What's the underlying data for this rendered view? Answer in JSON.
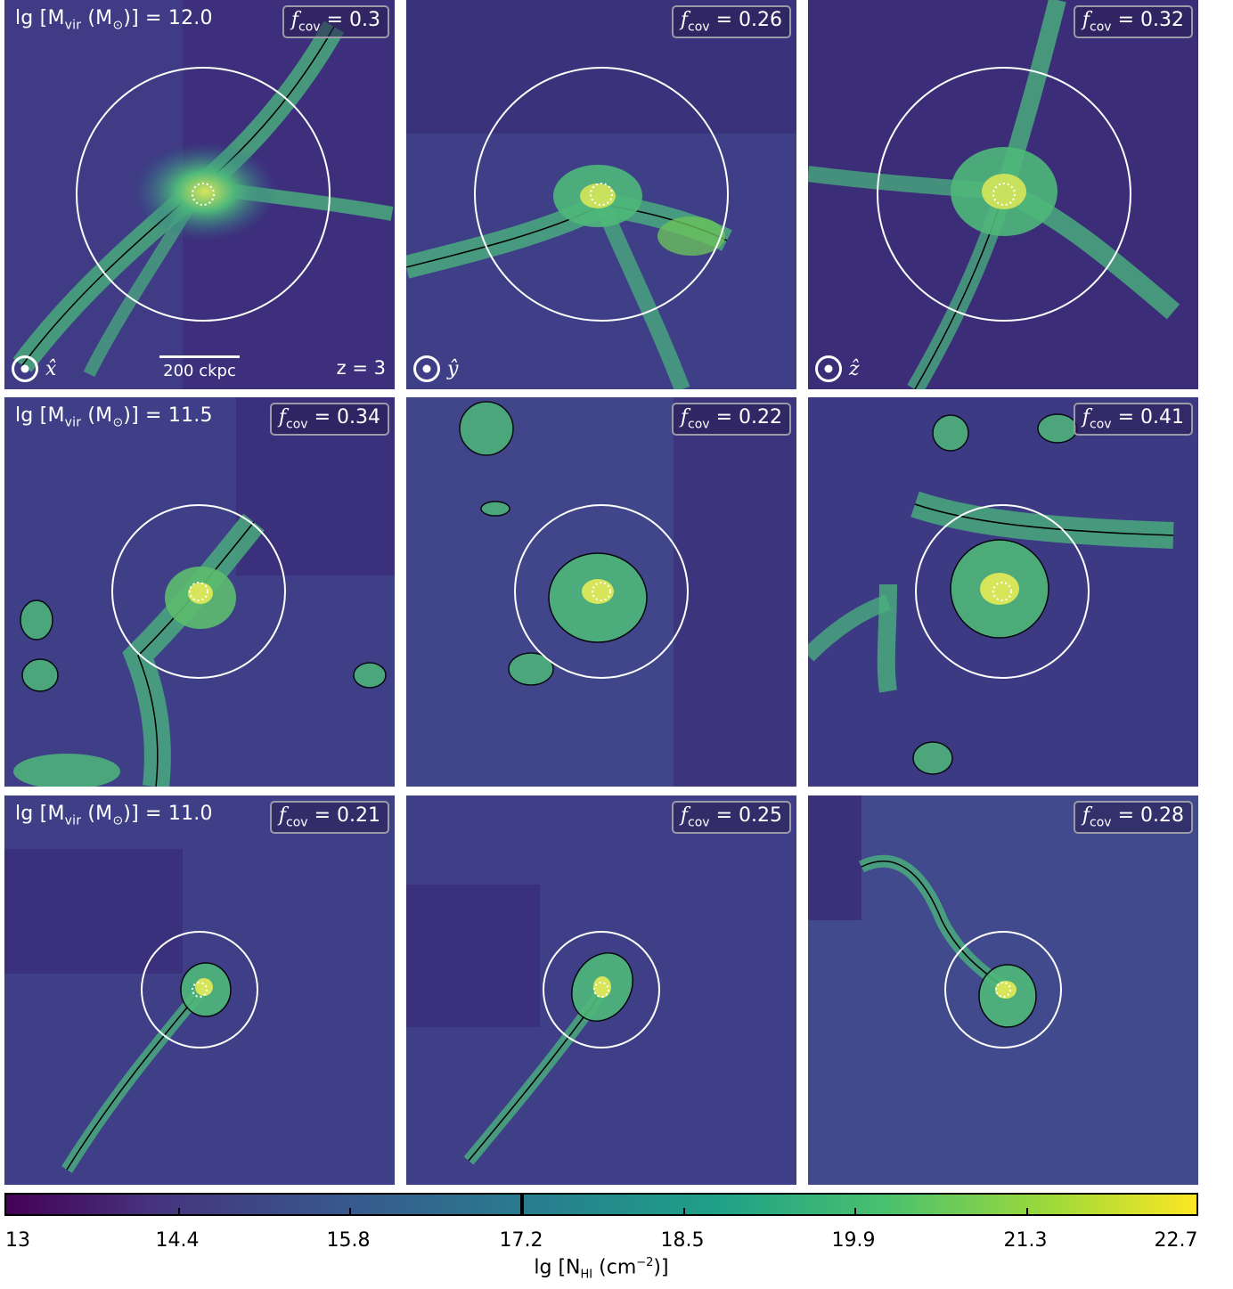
{
  "rows": [
    {
      "mass_label": "lg [M",
      "mass_label_sub": "vir",
      "mass_label_rest": " (M",
      "mass_label_tail": ")] = 12.0",
      "panels": [
        {
          "fcov": "0.3",
          "axis": "x̂"
        },
        {
          "fcov": "0.26",
          "axis": "ŷ"
        },
        {
          "fcov": "0.32",
          "axis": "ẑ"
        }
      ]
    },
    {
      "mass_label": "lg [M",
      "mass_label_sub": "vir",
      "mass_label_rest": " (M",
      "mass_label_tail": ")] = 11.5",
      "panels": [
        {
          "fcov": "0.34"
        },
        {
          "fcov": "0.22"
        },
        {
          "fcov": "0.41"
        }
      ]
    },
    {
      "mass_label": "lg [M",
      "mass_label_sub": "vir",
      "mass_label_rest": " (M",
      "mass_label_tail": ")] = 11.0",
      "panels": [
        {
          "fcov": "0.21"
        },
        {
          "fcov": "0.25"
        },
        {
          "fcov": "0.28"
        }
      ]
    }
  ],
  "fcov_symbol": "f",
  "fcov_sub": "cov",
  "fcov_eq": " = ",
  "sun_symbol": "⊙",
  "scalebar_label": "200 ckpc",
  "redshift_label": "z = 3",
  "colorbar": {
    "ticks": [
      "13",
      "14.4",
      "15.8",
      "17.2",
      "18.5",
      "19.9",
      "21.3",
      "22.7"
    ],
    "label_main": "lg [N",
    "label_sub": "HI",
    "label_mid": " (cm",
    "label_sup": "−2",
    "label_end": ")]",
    "colormap": [
      "#440154",
      "#46327e",
      "#365c8d",
      "#277f8e",
      "#1fa187",
      "#4ac16d",
      "#a0da39",
      "#fde725"
    ]
  }
}
